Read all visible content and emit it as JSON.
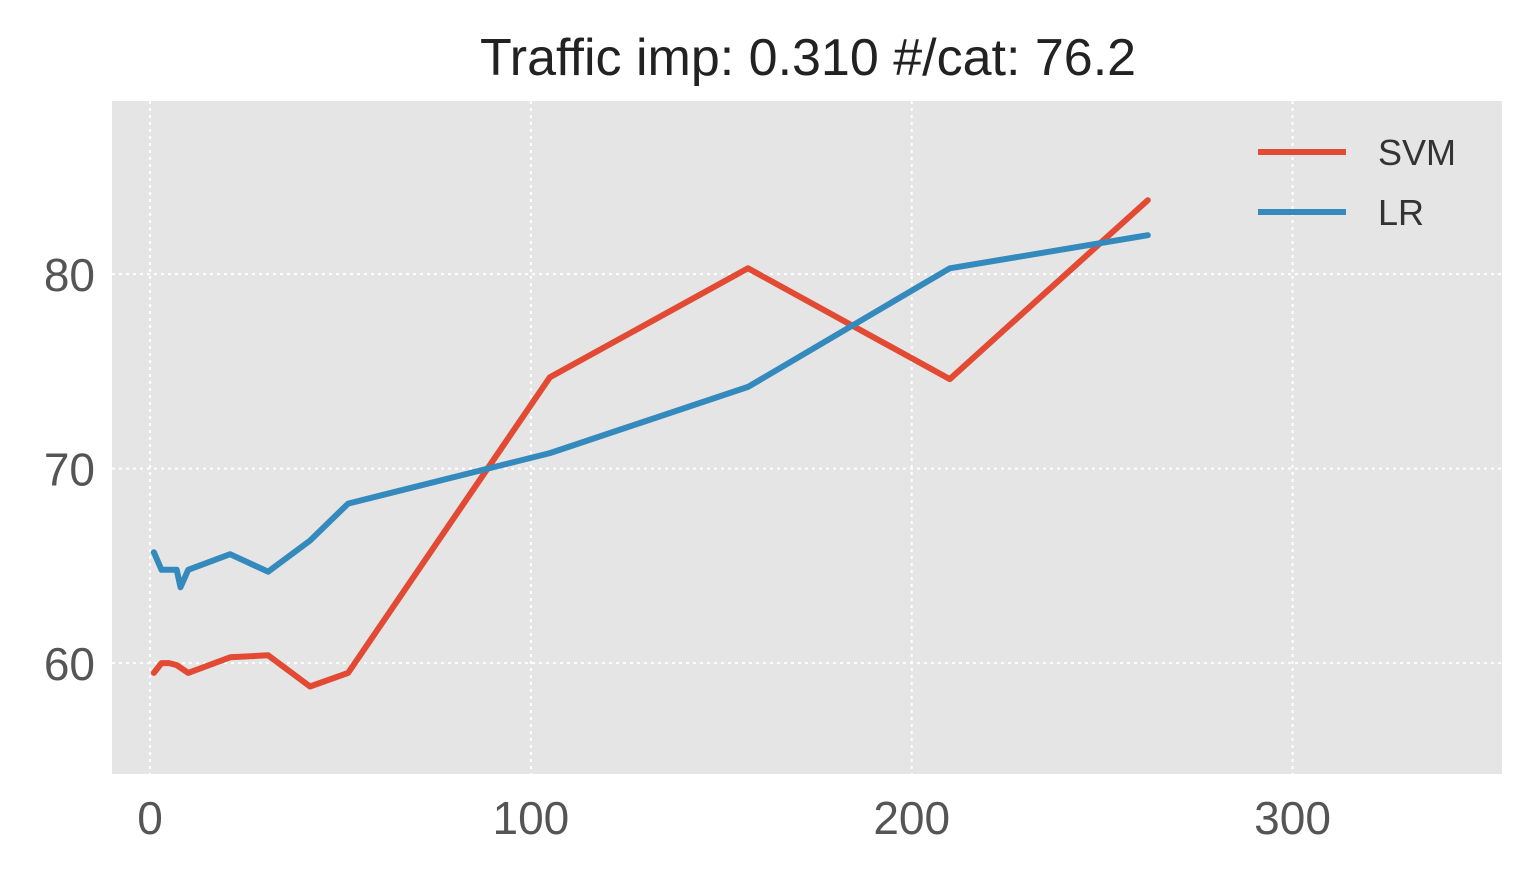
{
  "chart_data": {
    "type": "line",
    "title": "Traffic imp: 0.310 #/cat: 76.2",
    "xlabel": "",
    "ylabel": "",
    "xlim": [
      -10,
      355
    ],
    "ylim": [
      54.3,
      88.9
    ],
    "xticks": [
      0,
      100,
      200,
      300
    ],
    "yticks": [
      60,
      70,
      80
    ],
    "grid": true,
    "legend_position": "top-right",
    "series": [
      {
        "name": "SVM",
        "color": "#E24A33",
        "x": [
          1,
          3,
          5,
          7,
          10,
          21,
          31,
          42,
          52,
          105,
          157,
          210,
          262
        ],
        "y": [
          59.5,
          60.0,
          60.0,
          59.9,
          59.5,
          60.3,
          60.4,
          58.8,
          59.5,
          74.7,
          80.3,
          74.6,
          83.8
        ]
      },
      {
        "name": "LR",
        "color": "#348ABD",
        "x": [
          1,
          3,
          5,
          7,
          8,
          10,
          21,
          31,
          42,
          52,
          105,
          157,
          210,
          262
        ],
        "y": [
          65.7,
          64.8,
          64.8,
          64.8,
          63.9,
          64.8,
          65.6,
          64.7,
          66.3,
          68.2,
          70.8,
          74.2,
          80.3,
          82.0
        ]
      }
    ]
  }
}
